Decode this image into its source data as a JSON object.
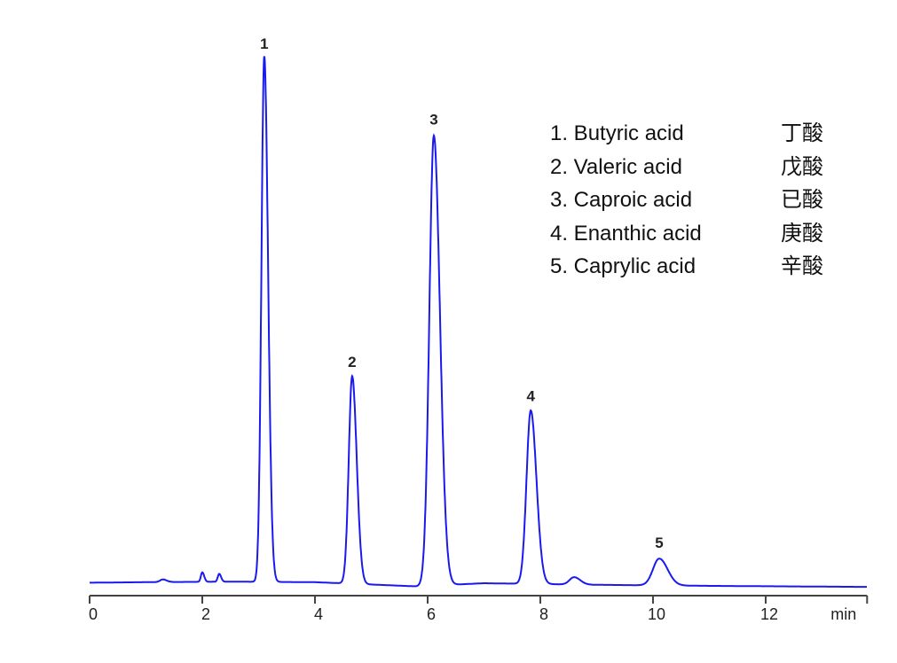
{
  "chart_data": {
    "type": "line",
    "title": "",
    "xlabel": "min",
    "ylabel": "",
    "xlim": [
      0,
      13.8
    ],
    "ylim": [
      0,
      100
    ],
    "grid": false,
    "line_color": "#1a1aee",
    "x_ticks": [
      0,
      2,
      4,
      6,
      8,
      10,
      12
    ],
    "x_tick_labels": [
      "0",
      "2",
      "4",
      "6",
      "8",
      "10",
      "12"
    ],
    "peaks": [
      {
        "label": "1",
        "time": 3.1,
        "height": 100,
        "width": 0.05
      },
      {
        "label": "2",
        "time": 4.66,
        "height": 39.5,
        "width": 0.06
      },
      {
        "label": "3",
        "time": 6.11,
        "height": 85.6,
        "width": 0.08
      },
      {
        "label": "4",
        "time": 7.83,
        "height": 33,
        "width": 0.075
      },
      {
        "label": "5",
        "time": 10.11,
        "height": 5.1,
        "width": 0.11
      }
    ],
    "minor_peaks": [
      {
        "time": 1.3,
        "height": 0.5,
        "width": 0.05
      },
      {
        "time": 2.0,
        "height": 1.8,
        "width": 0.025
      },
      {
        "time": 2.3,
        "height": 1.5,
        "width": 0.025
      },
      {
        "time": 8.6,
        "height": 1.4,
        "width": 0.08
      }
    ],
    "baseline": {
      "x": [
        0,
        1.0,
        2.5,
        4.0,
        5.8,
        7.0,
        9.0,
        11.0,
        13.8
      ],
      "y": [
        0.1,
        0.2,
        0.3,
        0.2,
        -0.6,
        0.0,
        -0.3,
        -0.5,
        -0.7
      ]
    }
  },
  "legend": [
    {
      "name": "1. Butyric acid",
      "cn": "丁酸"
    },
    {
      "name": "2. Valeric acid",
      "cn": "戊酸"
    },
    {
      "name": "3. Caproic acid",
      "cn": "已酸"
    },
    {
      "name": "4. Enanthic acid",
      "cn": "庚酸"
    },
    {
      "name": "5. Caprylic acid",
      "cn": "辛酸"
    }
  ]
}
